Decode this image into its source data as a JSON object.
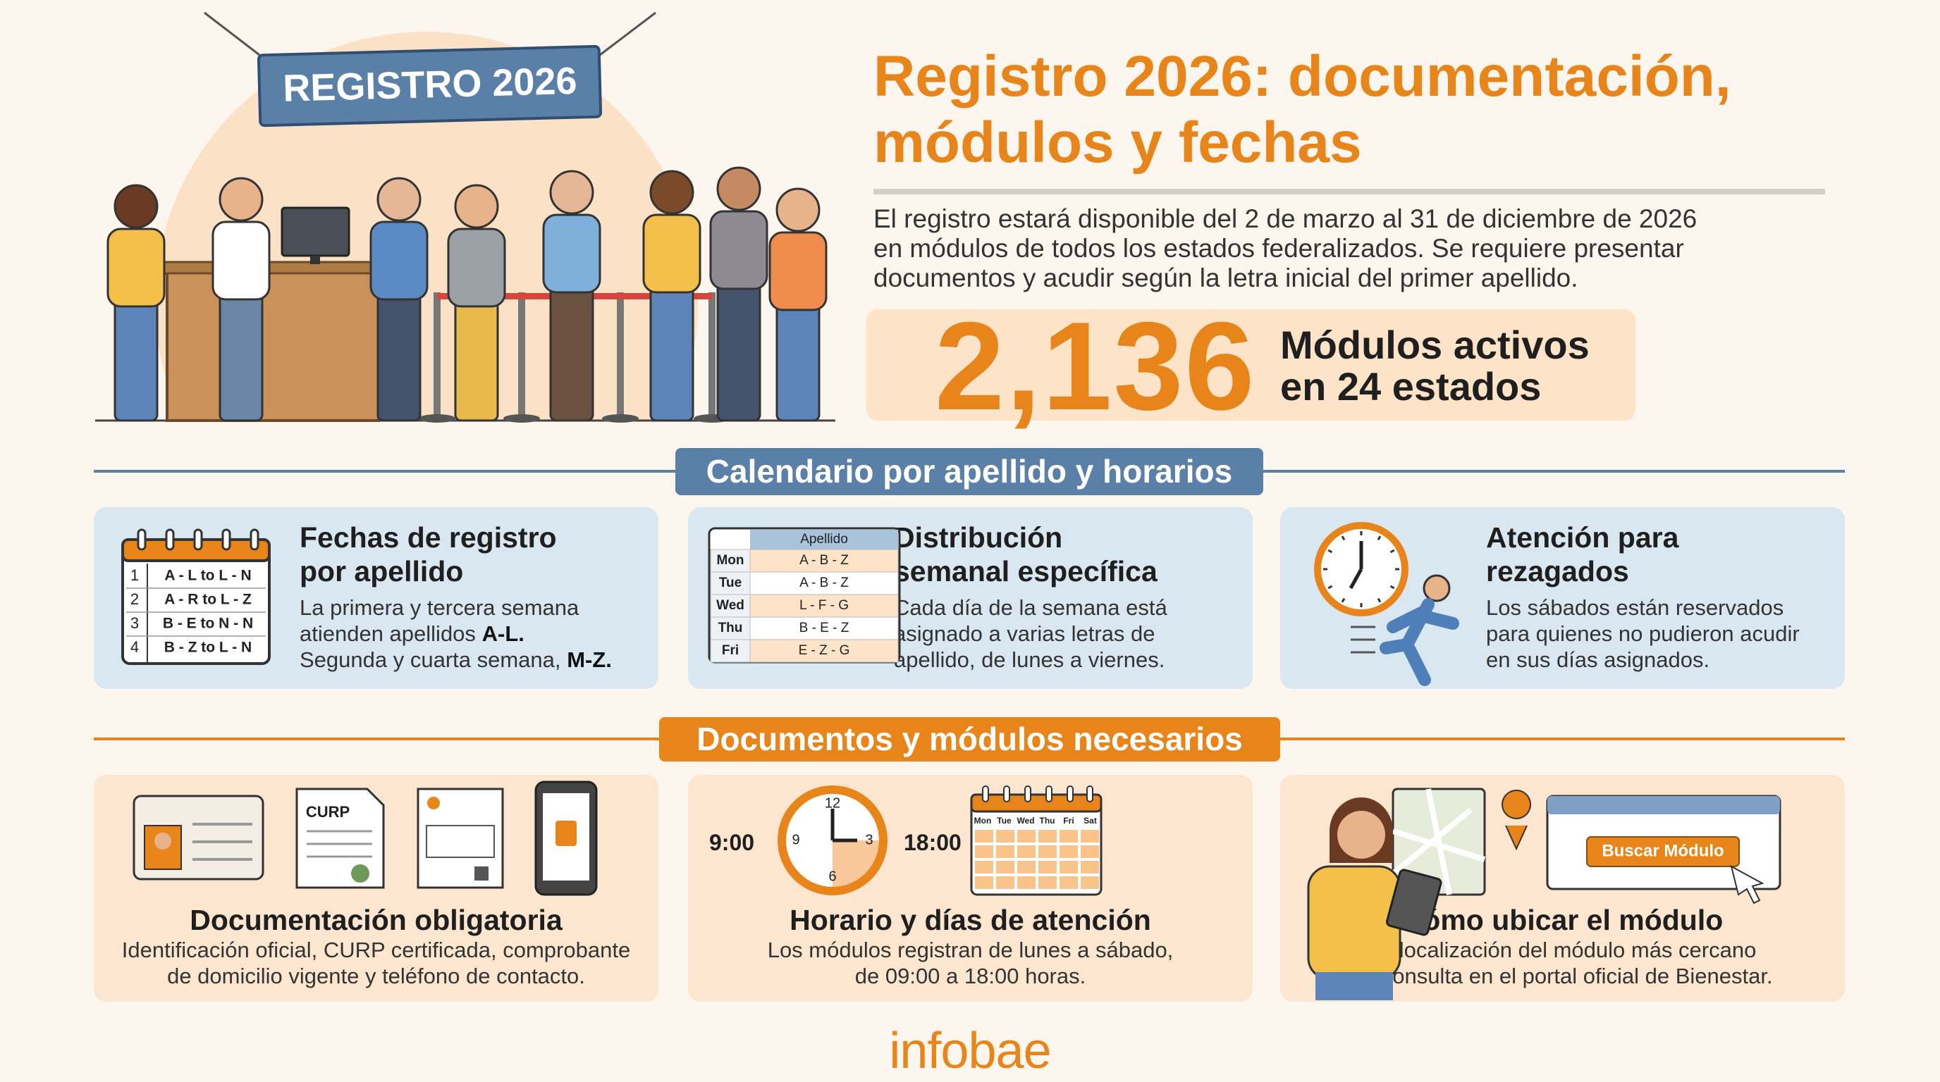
{
  "banner": "REGISTRO 2026",
  "header": {
    "title_lines": [
      "Registro 2026: documentación,",
      "módulos y fechas"
    ],
    "intro_lines": [
      "El registro estará disponible del 2 de marzo al 31 de diciembre de 2026",
      "en módulos de todos los estados federalizados. Se requiere presentar",
      "documentos y acudir según la letra inicial del primer apellido."
    ]
  },
  "stat": {
    "number": "2,136",
    "label_lines": [
      "Módulos activos",
      "en 24 estados"
    ]
  },
  "schedule": {
    "heading": "Calendario por apellido y horarios",
    "cards": [
      {
        "title_lines": [
          "Fechas de registro",
          "por apellido"
        ],
        "text_lines": [
          [
            "La primera y tercera semana"
          ],
          [
            "atienden apellidos",
            "A-L."
          ],
          [
            "Segunda y cuarta semana,",
            "M-Z."
          ]
        ],
        "calendar_rows": [
          [
            "1",
            "A - L to L - N"
          ],
          [
            "2",
            "A - R to L - Z"
          ],
          [
            "3",
            "B - E to N - N"
          ],
          [
            "4",
            "B - Z to L - N"
          ]
        ]
      },
      {
        "title_lines": [
          "Distribución",
          "semanal específica"
        ],
        "text_lines": [
          [
            "Cada día de la semana está"
          ],
          [
            "asignado a varias letras de"
          ],
          [
            "apellido, de lunes a viernes."
          ]
        ],
        "table": {
          "header": "Apellido",
          "rows": [
            [
              "Mon",
              "A - B - Z"
            ],
            [
              "Tue",
              "A - B - Z"
            ],
            [
              "Wed",
              "L - F - G"
            ],
            [
              "Thu",
              "B - E - Z"
            ],
            [
              "Fri",
              "E - Z - G"
            ]
          ]
        }
      },
      {
        "title_lines": [
          "Atención para",
          "rezagados"
        ],
        "text_lines": [
          [
            "Los sábados están reservados"
          ],
          [
            "para quienes no pudieron acudir"
          ],
          [
            "en sus días asignados."
          ]
        ]
      }
    ]
  },
  "documents": {
    "heading": "Documentos y módulos necesarios",
    "cards": [
      {
        "doc_label": "CURP",
        "title": "Documentación obligatoria",
        "text_lines": [
          "Identificación oficial, CURP certificada, comprobante",
          "de domicilio vigente y teléfono de contacto."
        ]
      },
      {
        "start": "9:00",
        "end": "18:00",
        "clock_numbers": [
          "12",
          "3",
          "6",
          "9"
        ],
        "days": [
          "Mon",
          "Tue",
          "Wed",
          "Thu",
          "Fri",
          "Sat"
        ],
        "title": "Horario y días de atención",
        "text_lines": [
          "Los módulos registran de lunes a sábado,",
          "de 09:00 a 18:00 horas."
        ]
      },
      {
        "button": "Buscar Módulo",
        "title": "Cómo ubicar el módulo",
        "text_lines": [
          "La localización del módulo más cercano",
          "se consulta en el portal oficial de Bienestar."
        ]
      }
    ]
  },
  "footer": "infobae"
}
